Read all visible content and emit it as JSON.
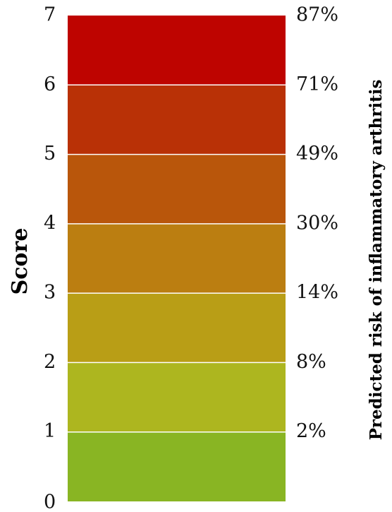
{
  "chart_data": {
    "type": "bar",
    "orientation": "stacked-scale",
    "ylabel_left": "Score",
    "ylabel_right": "Predicted risk of inflammatory arthritis",
    "ylim": [
      0,
      7
    ],
    "score_ticks": [
      "0",
      "1",
      "2",
      "3",
      "4",
      "5",
      "6",
      "7"
    ],
    "segments": [
      {
        "score_from": 0,
        "score_to": 1,
        "risk_label": "2%",
        "color": "#89b523"
      },
      {
        "score_from": 1,
        "score_to": 2,
        "risk_label": "8%",
        "color": "#adb61f"
      },
      {
        "score_from": 2,
        "score_to": 3,
        "risk_label": "14%",
        "color": "#b99e16"
      },
      {
        "score_from": 3,
        "score_to": 4,
        "risk_label": "30%",
        "color": "#bb7e11"
      },
      {
        "score_from": 4,
        "score_to": 5,
        "risk_label": "49%",
        "color": "#b9560b"
      },
      {
        "score_from": 5,
        "score_to": 6,
        "risk_label": "71%",
        "color": "#b93106"
      },
      {
        "score_from": 6,
        "score_to": 7,
        "risk_label": "87%",
        "color": "#be0400"
      }
    ],
    "top_risk_label": "87%"
  }
}
